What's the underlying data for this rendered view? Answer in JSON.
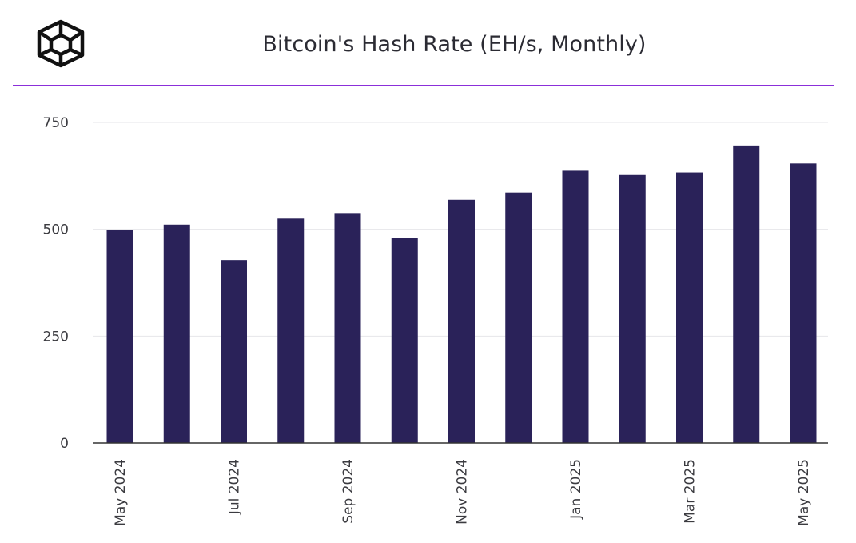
{
  "header": {
    "logo_icon": "cube-logo-icon",
    "accent_color": "#8b2fd9"
  },
  "chart_data": {
    "type": "bar",
    "title": "Bitcoin's Hash Rate (EH/s, Monthly)",
    "xlabel": "",
    "ylabel": "",
    "categories": [
      "May 2024",
      "Jun 2024",
      "Jul 2024",
      "Aug 2024",
      "Sep 2024",
      "Oct 2024",
      "Nov 2024",
      "Dec 2024",
      "Jan 2025",
      "Feb 2025",
      "Mar 2025",
      "Apr 2025",
      "May 2025"
    ],
    "x_tick_labels": [
      "May 2024",
      "",
      "Jul 2024",
      "",
      "Sep 2024",
      "",
      "Nov 2024",
      "",
      "Jan 2025",
      "",
      "Mar 2025",
      "",
      "May 2025"
    ],
    "values": [
      498,
      511,
      428,
      525,
      538,
      480,
      569,
      586,
      637,
      627,
      633,
      696,
      654
    ],
    "ylim": [
      0,
      750
    ],
    "y_ticks": [
      0,
      250,
      500,
      750
    ],
    "grid": true,
    "bar_color": "#2a2259"
  }
}
